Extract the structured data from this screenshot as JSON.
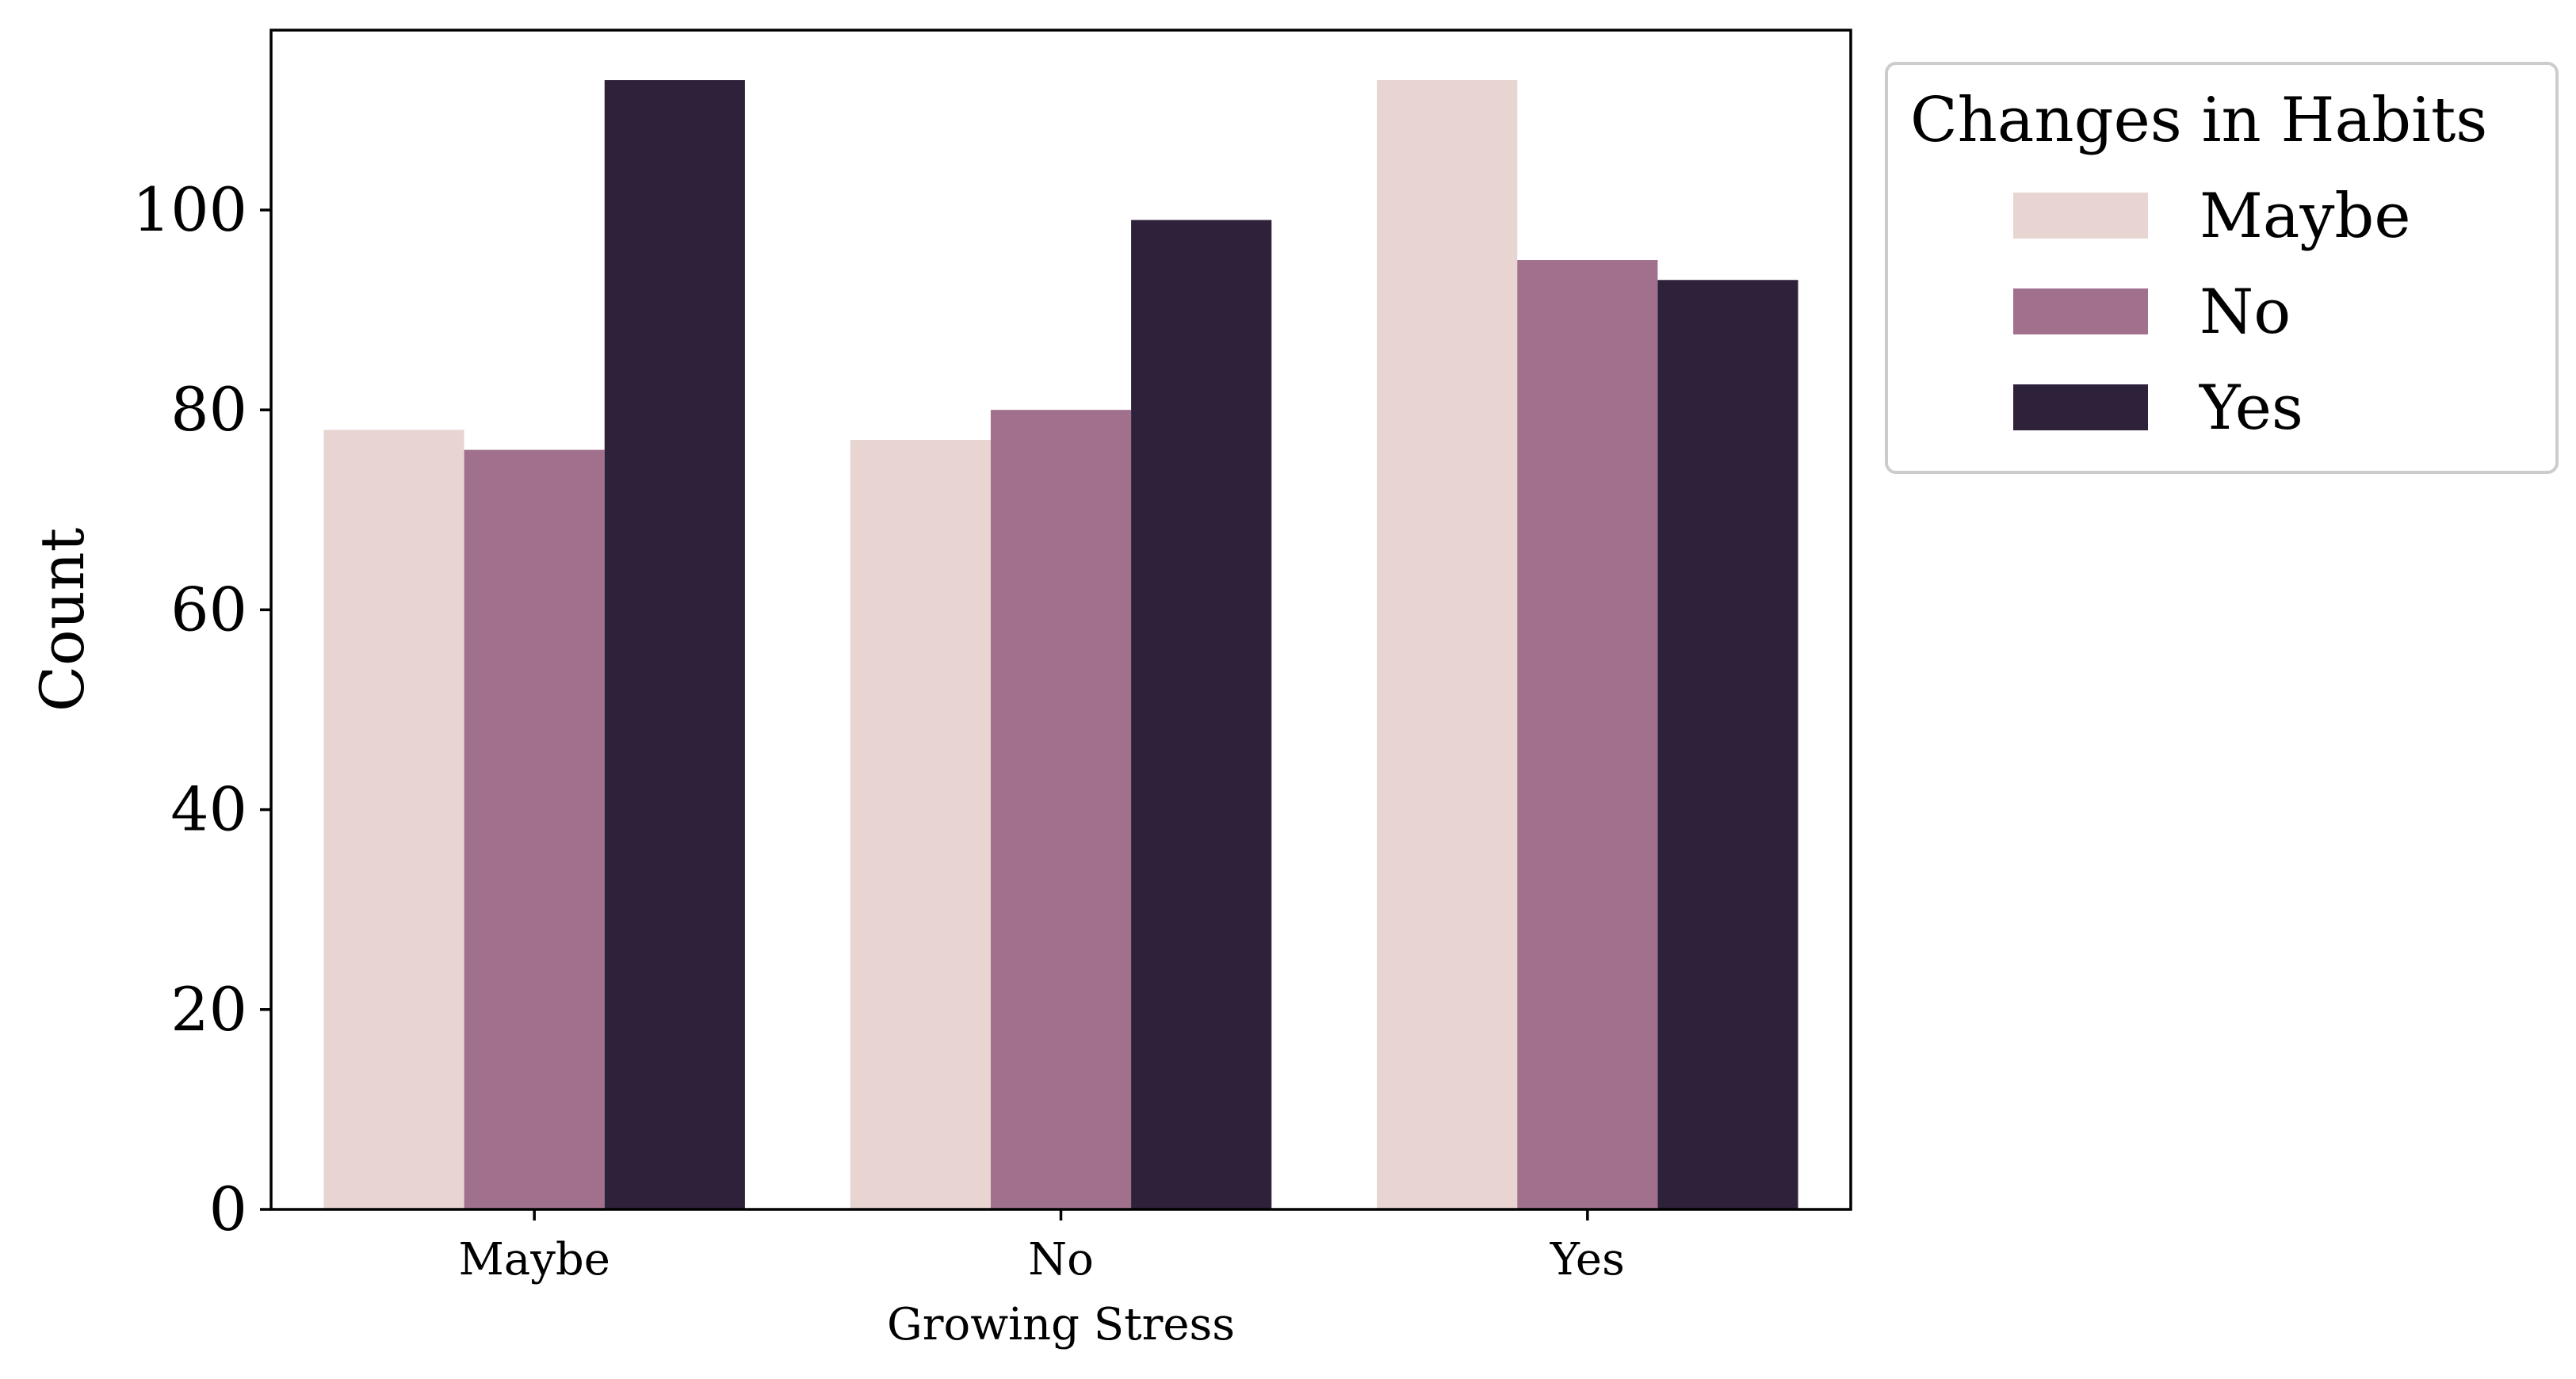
{
  "chart_data": {
    "type": "bar",
    "title": "",
    "xlabel": "Growing Stress",
    "ylabel": "Count",
    "categories": [
      "Maybe",
      "No",
      "Yes"
    ],
    "ylim": [
      0,
      118
    ],
    "yticks": [
      0,
      20,
      40,
      60,
      80,
      100
    ],
    "grid": false,
    "legend": {
      "title": "Changes in Habits",
      "placement": "outside-top-right"
    },
    "series": [
      {
        "name": "Maybe",
        "color": "#e8d5d1",
        "values": [
          78,
          77,
          113
        ]
      },
      {
        "name": "No",
        "color": "#a1708d",
        "values": [
          76,
          80,
          95
        ]
      },
      {
        "name": "Yes",
        "color": "#2e213a",
        "values": [
          113,
          99,
          93
        ]
      }
    ]
  }
}
